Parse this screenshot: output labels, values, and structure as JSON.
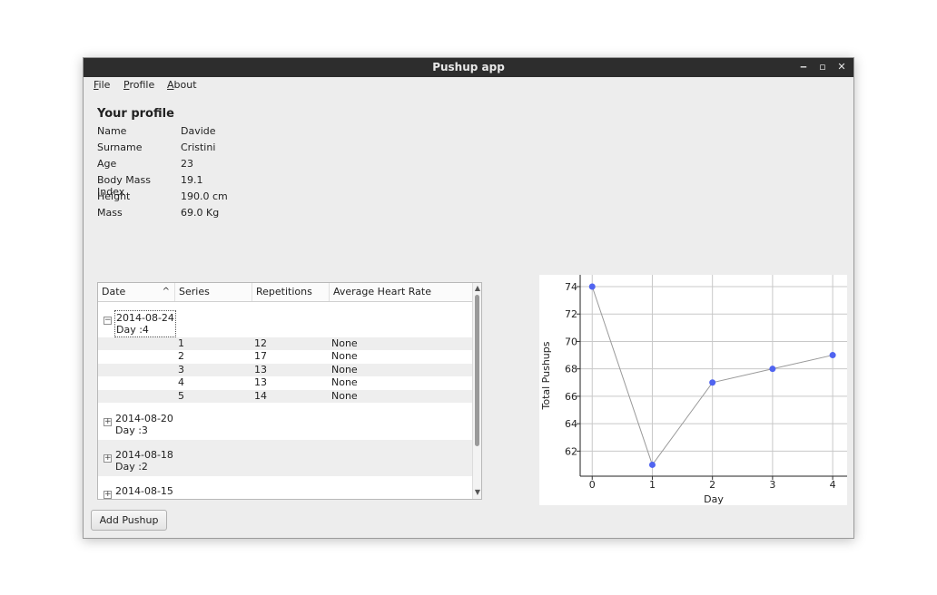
{
  "window": {
    "title": "Pushup app",
    "minimize_label": "‒",
    "maximize_label": "▫",
    "close_label": "✕"
  },
  "menu": {
    "file_mn": "F",
    "file_rest": "ile",
    "profile_mn": "P",
    "profile_rest": "rofile",
    "about_mn": "A",
    "about_rest": "bout"
  },
  "profile": {
    "heading": "Your profile",
    "fields": [
      {
        "label": "Name",
        "value": "Davide"
      },
      {
        "label": "Surname",
        "value": "Cristini"
      },
      {
        "label": "Age",
        "value": "23"
      },
      {
        "label": "Body Mass Index",
        "value": "19.1"
      },
      {
        "label": "Height",
        "value": "190.0 cm"
      },
      {
        "label": "Mass",
        "value": "69.0 Kg"
      }
    ]
  },
  "table": {
    "columns": [
      "Date",
      "Series",
      "Repetitions",
      "Average Heart Rate"
    ],
    "sort_indicator": "^",
    "groups": [
      {
        "date": "2014-08-24",
        "day": "Day :4",
        "expanded": true,
        "toggle": "−",
        "rows": [
          {
            "series": "1",
            "repetitions": "12",
            "heart_rate": "None"
          },
          {
            "series": "2",
            "repetitions": "17",
            "heart_rate": "None"
          },
          {
            "series": "3",
            "repetitions": "13",
            "heart_rate": "None"
          },
          {
            "series": "4",
            "repetitions": "13",
            "heart_rate": "None"
          },
          {
            "series": "5",
            "repetitions": "14",
            "heart_rate": "None"
          }
        ]
      },
      {
        "date": "2014-08-20",
        "day": "Day :3",
        "expanded": false,
        "toggle": "+"
      },
      {
        "date": "2014-08-18",
        "day": "Day :2",
        "expanded": false,
        "toggle": "+"
      },
      {
        "date": "2014-08-15",
        "day": "",
        "expanded": false,
        "toggle": "+"
      }
    ]
  },
  "scrollbar": {
    "up": "▲",
    "down": "▼"
  },
  "chart_data": {
    "type": "line",
    "x": [
      0,
      1,
      2,
      3,
      4
    ],
    "y": [
      74,
      61,
      67,
      68,
      69
    ],
    "xlabel": "Day",
    "ylabel": "Total Pushups",
    "xticks": [
      "0",
      "1",
      "2",
      "3",
      "4"
    ],
    "yticks": [
      "62",
      "64",
      "66",
      "68",
      "70",
      "72",
      "74"
    ],
    "xlim": [
      -0.2,
      4.24
    ],
    "ylim": [
      60.17,
      74.86
    ],
    "grid": true,
    "line_color": "#999999",
    "marker_color": "#5064f0"
  },
  "buttons": {
    "add_pushup": "Add Pushup"
  }
}
